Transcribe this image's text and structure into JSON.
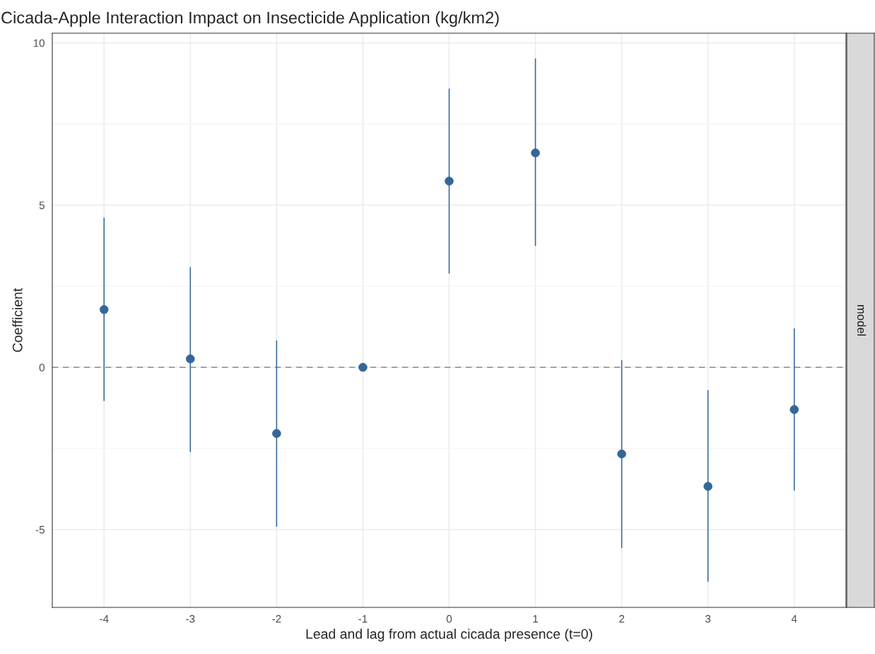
{
  "chart_data": {
    "type": "scatter",
    "title": "Cicada-Apple Interaction Impact on Insecticide Application (kg/km2)",
    "xlabel": "Lead and lag from actual cicada presence (t=0)",
    "ylabel": "Coefficient",
    "annotations": [
      "model"
    ],
    "x": [
      -4,
      -3,
      -2,
      -1,
      0,
      1,
      2,
      3,
      4
    ],
    "series": [
      {
        "color": "#336699",
        "values": [
          1.78,
          0.26,
          -2.04,
          0,
          5.74,
          6.61,
          -2.67,
          -3.67,
          -1.3
        ],
        "errors": [
          [
            -1.04,
            4.61
          ],
          [
            -2.61,
            3.09
          ],
          [
            -4.91,
            0.83
          ],
          null,
          [
            2.89,
            8.59
          ],
          [
            3.74,
            9.52
          ],
          [
            -5.57,
            0.22
          ],
          [
            -6.61,
            -0.7
          ],
          [
            -3.8,
            1.2
          ]
        ]
      }
    ],
    "xlim": [
      -4.6,
      4.6
    ],
    "xticks": [
      -4,
      -3,
      -2,
      -1,
      0,
      1,
      2,
      3,
      4
    ],
    "ylim": [
      -7.4,
      10.3
    ],
    "yticks": [
      -5,
      0,
      5,
      10
    ],
    "ref_lines": [
      {
        "axis": "y",
        "value": 0,
        "color": "#999999",
        "line_style": "dashed"
      }
    ],
    "grid": true,
    "legend": false,
    "marker": "circle"
  }
}
